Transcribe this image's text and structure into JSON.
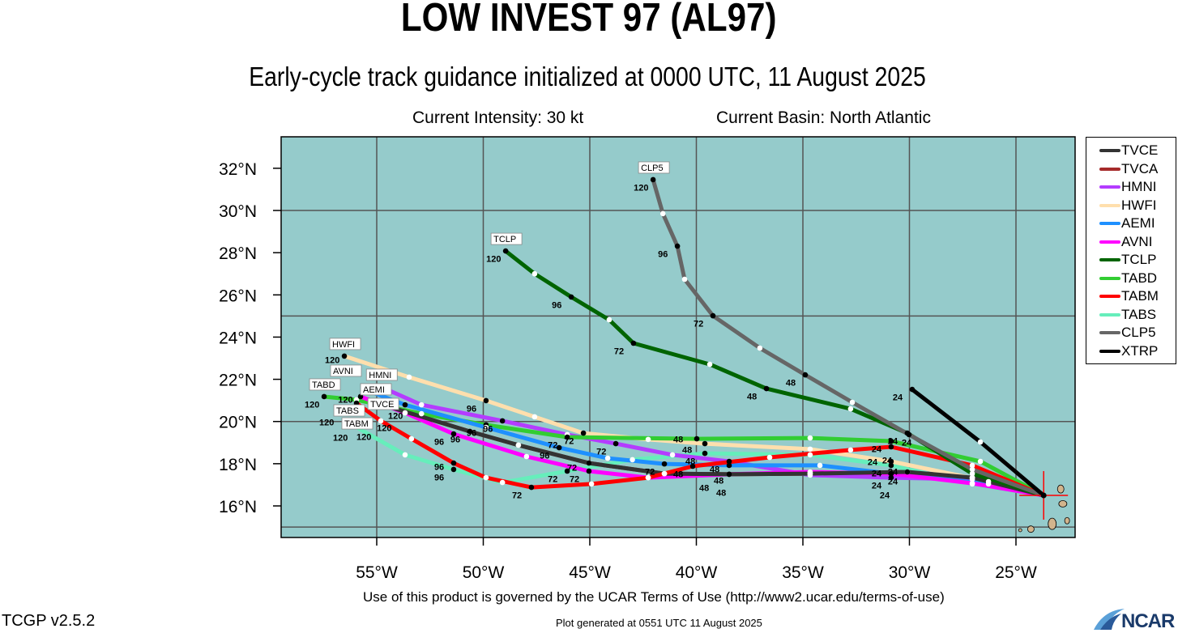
{
  "header": {
    "title": "LOW INVEST 97 (AL97)",
    "subtitle": "Early-cycle track guidance initialized at 0000 UTC, 11 August 2025",
    "intensity": "Current Intensity: 30 kt",
    "basin": "Current Basin: North Atlantic"
  },
  "footer": {
    "terms": "Use of this product is governed by the UCAR Terms of Use (http://www2.ucar.edu/terms-of-use)",
    "version": "TCGP v2.5.2",
    "generated": "Plot generated at 0551 UTC   11 August 2025",
    "logo": "NCAR"
  },
  "colors": {
    "ocean": "#95cbcb",
    "land": "#d2b48c",
    "grid": "#555555",
    "init_marker": "#ff0000"
  },
  "chart_data": {
    "type": "map-tracks",
    "lon_range": [
      -59.5,
      -22.2
    ],
    "lat_range": [
      14.5,
      33.5
    ],
    "grid_step_deg": 5,
    "lon_ticks": [
      -55,
      -50,
      -45,
      -40,
      -35,
      -30,
      -25
    ],
    "lon_tick_labels": [
      "55°W",
      "50°W",
      "45°W",
      "40°W",
      "35°W",
      "30°W",
      "25°W"
    ],
    "lat_ticks": [
      16,
      18,
      20,
      22,
      24,
      26,
      28,
      30,
      32
    ],
    "lat_tick_labels": [
      "16°N",
      "18°N",
      "20°N",
      "22°N",
      "24°N",
      "26°N",
      "28°N",
      "30°N",
      "32°N"
    ],
    "initial_position": [
      -23.7,
      16.5
    ],
    "legend_position": "right",
    "series": [
      {
        "name": "TVCA",
        "color": "#a52a2a",
        "end_box": false,
        "labels": [],
        "points": [
          [
            -23.7,
            16.5
          ],
          [
            -27.05,
            17.34
          ],
          [
            -30.1,
            17.61
          ],
          [
            -34.66,
            17.53
          ],
          [
            -38.46,
            17.5
          ],
          [
            -41.5,
            17.53
          ],
          [
            -45.04,
            18.03
          ],
          [
            -48.35,
            18.88
          ],
          [
            -50.63,
            19.53
          ],
          [
            -55.11,
            20.91
          ]
        ]
      },
      {
        "name": "TABS",
        "color": "#66eebb",
        "end_box": true,
        "labels": [
          [
            2,
            "24"
          ],
          [
            4,
            "48"
          ],
          [
            6,
            "72"
          ],
          [
            8,
            "96"
          ],
          [
            10,
            "120"
          ]
        ],
        "points": [
          [
            -23.7,
            16.5
          ],
          [
            -27.05,
            17.04
          ],
          [
            -30.86,
            17.92
          ],
          [
            -34.66,
            18.42
          ],
          [
            -39.6,
            18.49
          ],
          [
            -43.0,
            18.19
          ],
          [
            -46.06,
            17.65
          ],
          [
            -49.1,
            17.11
          ],
          [
            -51.39,
            17.73
          ],
          [
            -53.67,
            18.42
          ],
          [
            -56.33,
            19.95
          ]
        ]
      },
      {
        "name": "HWFI",
        "color": "#ffdfad",
        "end_box": true,
        "labels": [
          [
            2,
            "24"
          ],
          [
            4,
            "48"
          ],
          [
            6,
            "72"
          ],
          [
            8,
            "96"
          ],
          [
            10,
            "120"
          ]
        ],
        "points": [
          [
            -23.7,
            16.5
          ],
          [
            -26.29,
            17.15
          ],
          [
            -30.86,
            18.11
          ],
          [
            -34.66,
            18.69
          ],
          [
            -39.6,
            18.95
          ],
          [
            -42.26,
            19.15
          ],
          [
            -45.3,
            19.45
          ],
          [
            -47.59,
            20.22
          ],
          [
            -49.87,
            20.99
          ],
          [
            -53.48,
            22.1
          ],
          [
            -56.52,
            23.1
          ]
        ]
      },
      {
        "name": "HMNI",
        "color": "#b43cff",
        "end_box": true,
        "labels": [
          [
            2,
            "24"
          ],
          [
            4,
            "48"
          ],
          [
            6,
            "72"
          ],
          [
            8,
            "96"
          ],
          [
            10,
            "120"
          ]
        ],
        "points": [
          [
            -23.7,
            16.5
          ],
          [
            -27.05,
            17.26
          ],
          [
            -30.86,
            17.34
          ],
          [
            -34.66,
            17.46
          ],
          [
            -38.46,
            18.11
          ],
          [
            -41.12,
            18.42
          ],
          [
            -43.78,
            18.95
          ],
          [
            -46.06,
            19.38
          ],
          [
            -49.1,
            20.03
          ],
          [
            -52.9,
            20.79
          ],
          [
            -54.8,
            21.64
          ]
        ]
      },
      {
        "name": "TABD",
        "color": "#32cd32",
        "end_box": true,
        "labels": [
          [
            2,
            "24"
          ],
          [
            4,
            "48"
          ],
          [
            5,
            "72"
          ],
          [
            6,
            "96"
          ],
          [
            9,
            "120"
          ]
        ],
        "points": [
          [
            -23.7,
            16.5
          ],
          [
            -26.67,
            18.11
          ],
          [
            -30.86,
            19.07
          ],
          [
            -34.66,
            19.22
          ],
          [
            -39.98,
            19.18
          ],
          [
            -46.06,
            19.26
          ],
          [
            -49.87,
            19.84
          ],
          [
            -52.9,
            20.37
          ],
          [
            -55.95,
            21.03
          ],
          [
            -57.47,
            21.18
          ]
        ]
      },
      {
        "name": "AEMI",
        "color": "#1e90ff",
        "end_box": true,
        "labels": [
          [
            2,
            "24"
          ],
          [
            4,
            "48"
          ],
          [
            5,
            "72"
          ],
          [
            7,
            "96"
          ],
          [
            9,
            "120"
          ]
        ],
        "points": [
          [
            -23.7,
            16.5
          ],
          [
            -26.29,
            17.04
          ],
          [
            -30.86,
            17.53
          ],
          [
            -34.2,
            17.92
          ],
          [
            -38.46,
            17.92
          ],
          [
            -41.5,
            17.99
          ],
          [
            -44.16,
            18.26
          ],
          [
            -46.44,
            18.76
          ],
          [
            -49.87,
            19.72
          ],
          [
            -53.67,
            20.79
          ],
          [
            -55.38,
            21.45
          ]
        ]
      },
      {
        "name": "AVNI",
        "color": "#ff00ff",
        "end_box": true,
        "labels": [
          [
            2,
            "24"
          ],
          [
            4,
            "48"
          ],
          [
            6,
            "72"
          ],
          [
            8,
            "96"
          ],
          [
            10,
            "120"
          ]
        ],
        "points": [
          [
            -23.7,
            16.5
          ],
          [
            -27.05,
            17.07
          ],
          [
            -30.86,
            17.53
          ],
          [
            -34.66,
            17.61
          ],
          [
            -38.46,
            17.5
          ],
          [
            -42.26,
            17.34
          ],
          [
            -45.04,
            17.65
          ],
          [
            -47.97,
            18.34
          ],
          [
            -51.39,
            19.41
          ],
          [
            -53.67,
            20.41
          ],
          [
            -55.76,
            21.18
          ]
        ]
      },
      {
        "name": "TVCE",
        "color": "#333333",
        "end_box": true,
        "labels": [
          [
            2,
            "24"
          ],
          [
            4,
            "48"
          ],
          [
            6,
            "72"
          ],
          [
            8,
            "96"
          ],
          [
            9,
            "120"
          ]
        ],
        "points": [
          [
            -23.7,
            16.5
          ],
          [
            -27.05,
            17.34
          ],
          [
            -30.1,
            17.61
          ],
          [
            -34.66,
            17.53
          ],
          [
            -38.46,
            17.5
          ],
          [
            -41.5,
            17.53
          ],
          [
            -45.04,
            18.03
          ],
          [
            -48.35,
            18.88
          ],
          [
            -50.63,
            19.53
          ],
          [
            -55.11,
            20.91
          ]
        ]
      },
      {
        "name": "TABM",
        "color": "#ff0000",
        "end_box": true,
        "labels": [
          [
            2,
            "24"
          ],
          [
            5,
            "48"
          ],
          [
            8,
            "72"
          ],
          [
            10,
            "96"
          ],
          [
            13,
            "120"
          ]
        ],
        "points": [
          [
            -23.7,
            16.5
          ],
          [
            -27.05,
            17.92
          ],
          [
            -30.86,
            18.8
          ],
          [
            -32.76,
            18.65
          ],
          [
            -36.56,
            18.3
          ],
          [
            -40.17,
            17.88
          ],
          [
            -42.26,
            17.34
          ],
          [
            -44.92,
            17.04
          ],
          [
            -47.74,
            16.88
          ],
          [
            -49.87,
            17.34
          ],
          [
            -51.39,
            18.03
          ],
          [
            -53.37,
            19.18
          ],
          [
            -54.81,
            20.03
          ],
          [
            -55.95,
            20.87
          ]
        ]
      },
      {
        "name": "TCLP",
        "color": "#006400",
        "end_box": true,
        "labels": [
          [
            2,
            "24"
          ],
          [
            4,
            "48"
          ],
          [
            6,
            "72"
          ],
          [
            8,
            "96"
          ],
          [
            10,
            "120"
          ]
        ],
        "points": [
          [
            -23.7,
            16.5
          ],
          [
            -27.05,
            17.53
          ],
          [
            -30.1,
            19.45
          ],
          [
            -32.76,
            20.6
          ],
          [
            -36.71,
            21.56
          ],
          [
            -39.37,
            22.71
          ],
          [
            -42.95,
            23.71
          ],
          [
            -44.09,
            24.82
          ],
          [
            -45.87,
            25.9
          ],
          [
            -47.59,
            27.0
          ],
          [
            -48.95,
            28.08
          ]
        ]
      },
      {
        "name": "CLP5",
        "color": "#666666",
        "end_box": true,
        "labels": [
          [
            2,
            "24"
          ],
          [
            4,
            "48"
          ],
          [
            6,
            "72"
          ],
          [
            8,
            "96"
          ],
          [
            10,
            "120"
          ]
        ],
        "points": [
          [
            -23.7,
            16.5
          ],
          [
            -27.05,
            17.73
          ],
          [
            -30.02,
            19.38
          ],
          [
            -32.68,
            20.91
          ],
          [
            -34.89,
            22.21
          ],
          [
            -37.02,
            23.48
          ],
          [
            -39.22,
            25.01
          ],
          [
            -40.55,
            26.74
          ],
          [
            -40.89,
            28.31
          ],
          [
            -41.57,
            29.85
          ],
          [
            -42.03,
            31.46
          ]
        ]
      },
      {
        "name": "XTRP",
        "color": "#000000",
        "end_box": false,
        "labels": [
          [
            2,
            "24"
          ]
        ],
        "points": [
          [
            -23.7,
            16.5
          ],
          [
            -26.67,
            19.03
          ],
          [
            -29.87,
            21.52
          ]
        ]
      }
    ],
    "legend": [
      {
        "name": "TVCE",
        "color": "#333333"
      },
      {
        "name": "TVCA",
        "color": "#a52a2a"
      },
      {
        "name": "HMNI",
        "color": "#b43cff"
      },
      {
        "name": "HWFI",
        "color": "#ffdfad"
      },
      {
        "name": "AEMI",
        "color": "#1e90ff"
      },
      {
        "name": "AVNI",
        "color": "#ff00ff"
      },
      {
        "name": "TCLP",
        "color": "#006400"
      },
      {
        "name": "TABD",
        "color": "#32cd32"
      },
      {
        "name": "TABM",
        "color": "#ff0000"
      },
      {
        "name": "TABS",
        "color": "#66eebb"
      },
      {
        "name": "CLP5",
        "color": "#666666"
      },
      {
        "name": "XTRP",
        "color": "#000000"
      }
    ]
  }
}
